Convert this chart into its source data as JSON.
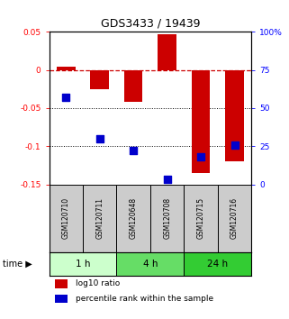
{
  "title": "GDS3433 / 19439",
  "samples": [
    "GSM120710",
    "GSM120711",
    "GSM120648",
    "GSM120708",
    "GSM120715",
    "GSM120716"
  ],
  "log10_ratio": [
    0.004,
    -0.025,
    -0.042,
    0.047,
    -0.135,
    -0.12
  ],
  "percentile_rank": [
    57,
    30,
    22,
    3,
    18,
    26
  ],
  "ylim_left": [
    -0.15,
    0.05
  ],
  "ylim_right": [
    0,
    100
  ],
  "yticks_left": [
    0.05,
    0.0,
    -0.05,
    -0.1,
    -0.15
  ],
  "ytick_labels_left": [
    "0.05",
    "0",
    "-0.05",
    "-0.1",
    "-0.15"
  ],
  "yticks_right": [
    100,
    75,
    50,
    25,
    0
  ],
  "ytick_labels_right": [
    "100%",
    "75",
    "50",
    "25",
    "0"
  ],
  "time_groups": [
    {
      "label": "1 h",
      "cols": [
        0,
        1
      ],
      "color": "#ccffcc"
    },
    {
      "label": "4 h",
      "cols": [
        2,
        3
      ],
      "color": "#66dd66"
    },
    {
      "label": "24 h",
      "cols": [
        4,
        5
      ],
      "color": "#33cc33"
    }
  ],
  "bar_color": "#cc0000",
  "dot_color": "#0000cc",
  "bar_width": 0.55,
  "dot_size": 30,
  "zero_line_color": "#cc0000",
  "zero_line_style": "--",
  "dotted_line_color": "#000000",
  "bg_color": "#ffffff",
  "sample_bg_color": "#cccccc",
  "legend_bar_label": "log10 ratio",
  "legend_dot_label": "percentile rank within the sample",
  "fig_width": 3.21,
  "fig_height": 3.54,
  "dpi": 100
}
